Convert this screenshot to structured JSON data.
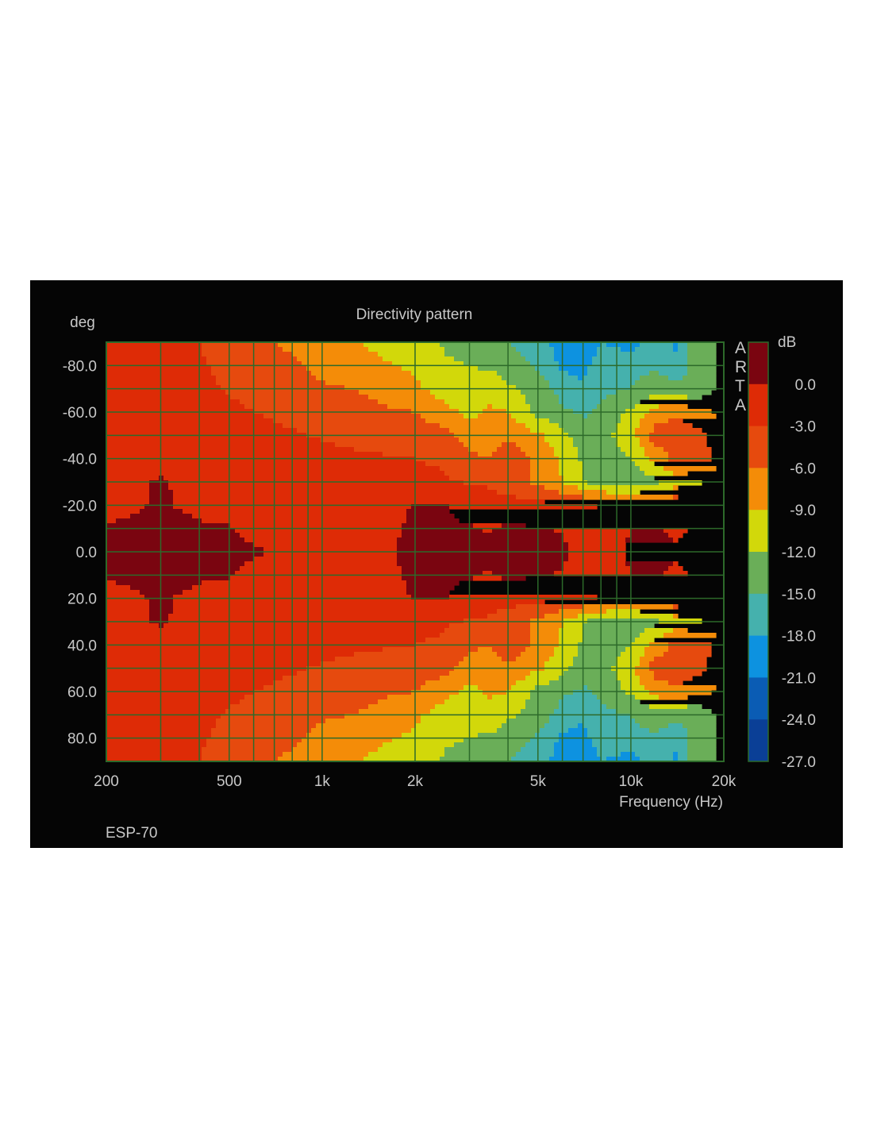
{
  "chart_data": {
    "type": "heatmap",
    "title": "Directivity pattern",
    "xlabel": "Frequency (Hz)",
    "ylabel": "deg",
    "x_scale": "log",
    "xlim": [
      200,
      20000
    ],
    "ylim": [
      -90,
      90
    ],
    "x_ticks": [
      {
        "value": 200,
        "label": "200"
      },
      {
        "value": 500,
        "label": "500"
      },
      {
        "value": 1000,
        "label": "1k"
      },
      {
        "value": 2000,
        "label": "2k"
      },
      {
        "value": 5000,
        "label": "5k"
      },
      {
        "value": 10000,
        "label": "10k"
      },
      {
        "value": 20000,
        "label": "20k"
      }
    ],
    "y_ticks": [
      {
        "value": -80,
        "label": "-80.0"
      },
      {
        "value": -60,
        "label": "-60.0"
      },
      {
        "value": -40,
        "label": "-40.0"
      },
      {
        "value": -20,
        "label": "-20.0"
      },
      {
        "value": 0,
        "label": "0.0"
      },
      {
        "value": 20,
        "label": "20.0"
      },
      {
        "value": 40,
        "label": "40.0"
      },
      {
        "value": 60,
        "label": "60.0"
      },
      {
        "value": 80,
        "label": "80.0"
      }
    ],
    "colorbar": {
      "unit": "dB",
      "bands": [
        {
          "from": 0,
          "to": 3,
          "color": "#7a0510"
        },
        {
          "from": -3,
          "to": 0,
          "color": "#de2b06"
        },
        {
          "from": -6,
          "to": -3,
          "color": "#e64a0e"
        },
        {
          "from": -9,
          "to": -6,
          "color": "#f48c08"
        },
        {
          "from": -12,
          "to": -9,
          "color": "#d2d80a"
        },
        {
          "from": -15,
          "to": -12,
          "color": "#6aae58"
        },
        {
          "from": -18,
          "to": -15,
          "color": "#45b1ad"
        },
        {
          "from": -21,
          "to": -18,
          "color": "#0d92e0"
        },
        {
          "from": -24,
          "to": -21,
          "color": "#0a5cb4"
        },
        {
          "from": -27,
          "to": -24,
          "color": "#0a3f96"
        }
      ],
      "tick_labels": [
        "0.0",
        "-3.0",
        "-6.0",
        "-9.0",
        "-12.0",
        "-15.0",
        "-18.0",
        "-21.0",
        "-24.0",
        "-27.0"
      ]
    },
    "angles_deg": [
      0,
      10,
      20,
      30,
      40,
      50,
      60,
      70,
      80,
      90
    ],
    "frequencies_hz": [
      200,
      300,
      400,
      500,
      600,
      800,
      1000,
      1500,
      2000,
      2500,
      3000,
      3500,
      4000,
      5000,
      6000,
      7000,
      8000,
      10000,
      12000,
      14000,
      16000,
      20000
    ],
    "level_db": [
      [
        0.6,
        0.8,
        0.2,
        0.4,
        0.2,
        -0.3,
        -0.5,
        -0.6,
        0.6,
        0.9,
        0.7,
        0.6,
        0.8,
        0.6,
        0.5,
        -1.2,
        -1.4,
        0.3,
        0.6,
        0.2,
        0.5,
        0.6
      ],
      [
        0.2,
        0.6,
        0.2,
        0.1,
        -0.4,
        -0.8,
        -0.9,
        -0.8,
        0.4,
        0.6,
        0.2,
        -0.2,
        0.4,
        0.2,
        -0.2,
        -1.6,
        -1.8,
        0.1,
        0.2,
        -0.3,
        0.1,
        0.2
      ],
      [
        -0.7,
        0.2,
        -0.4,
        -0.6,
        -1.2,
        -1.4,
        -1.5,
        -1.3,
        0.2,
        0.1,
        -1.2,
        -1.6,
        -1.5,
        -2.2,
        -2.5,
        -2.8,
        -3.2,
        -3.5,
        -3.6,
        -3.5,
        -3.3,
        -3.2
      ],
      [
        -1.4,
        0.3,
        -1.0,
        -1.4,
        -1.6,
        -1.8,
        -2.0,
        -2.2,
        -2.0,
        -2.6,
        -3.3,
        -3.5,
        -5.0,
        -6.5,
        -9.0,
        -12.0,
        -13.5,
        -14.0,
        -12.5,
        -10.5,
        -12.0,
        -13.0
      ],
      [
        -1.8,
        -1.2,
        -1.6,
        -1.6,
        -1.8,
        -2.0,
        -2.3,
        -2.7,
        -3.0,
        -3.5,
        -5.5,
        -6.0,
        -4.0,
        -7.0,
        -9.5,
        -12.5,
        -14.0,
        -12.0,
        -8.0,
        -5.0,
        -4.5,
        -7.0
      ],
      [
        -2.0,
        -2.0,
        -2.0,
        -2.2,
        -2.4,
        -2.8,
        -3.2,
        -4.0,
        -4.5,
        -5.0,
        -7.5,
        -7.0,
        -6.5,
        -8.5,
        -11.0,
        -13.5,
        -13.0,
        -10.0,
        -4.5,
        -4.0,
        -5.0,
        -7.5
      ],
      [
        -2.2,
        -2.2,
        -2.3,
        -2.6,
        -3.0,
        -3.5,
        -4.5,
        -5.5,
        -6.0,
        -8.0,
        -10.0,
        -8.5,
        -9.0,
        -13.0,
        -14.5,
        -15.5,
        -14.0,
        -11.5,
        -8.0,
        -6.5,
        -7.5,
        -10.0
      ],
      [
        -2.4,
        -2.4,
        -2.5,
        -3.2,
        -3.6,
        -4.5,
        -5.5,
        -6.5,
        -8.5,
        -10.5,
        -11.0,
        -10.0,
        -11.5,
        -13.5,
        -16.0,
        -17.5,
        -16.0,
        -15.0,
        -13.0,
        -13.5,
        -15.0,
        -11.0
      ],
      [
        -2.6,
        -2.6,
        -2.8,
        -3.5,
        -4.5,
        -5.5,
        -7.0,
        -8.5,
        -9.5,
        -11.5,
        -12.0,
        -12.5,
        -13.5,
        -15.5,
        -18.5,
        -19.0,
        -16.0,
        -16.5,
        -15.5,
        -17.5,
        -13.5,
        -11.5
      ],
      [
        -2.8,
        -2.8,
        -3.0,
        -4.0,
        -5.5,
        -6.5,
        -8.0,
        -9.5,
        -10.5,
        -12.5,
        -13.0,
        -14.0,
        -15.0,
        -16.5,
        -19.5,
        -21.5,
        -18.0,
        -19.0,
        -17.0,
        -18.5,
        -14.0,
        -11.0
      ]
    ],
    "watermark": "ARTA",
    "caption": "ESP-70"
  }
}
